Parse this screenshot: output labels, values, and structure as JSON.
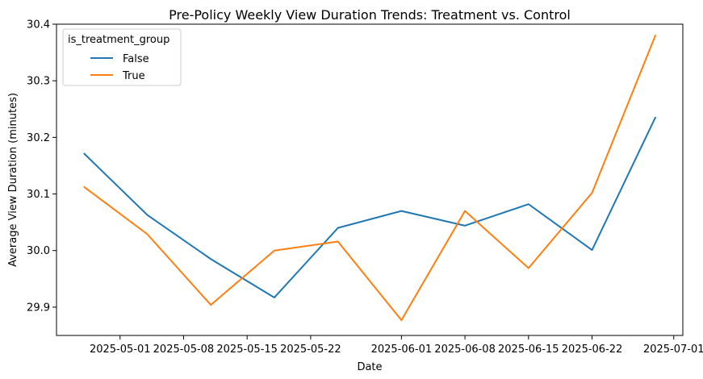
{
  "chart_data": {
    "type": "line",
    "title": "Pre-Policy Weekly View Duration Trends: Treatment vs. Control",
    "xlabel": "Date",
    "ylabel": "Average View Duration (minutes)",
    "x": [
      "2025-04-27",
      "2025-05-04",
      "2025-05-11",
      "2025-05-18",
      "2025-05-25",
      "2025-06-01",
      "2025-06-08",
      "2025-06-15",
      "2025-06-22",
      "2025-06-29"
    ],
    "xlim": [
      "2025-04-24",
      "2025-07-02"
    ],
    "xticks": [
      "2025-05-01",
      "2025-05-08",
      "2025-05-15",
      "2025-05-22",
      "2025-06-01",
      "2025-06-08",
      "2025-06-15",
      "2025-06-22",
      "2025-07-01"
    ],
    "ylim": [
      29.85,
      30.4
    ],
    "yticks": [
      29.9,
      30.0,
      30.1,
      30.2,
      30.3,
      30.4
    ],
    "grid": false,
    "legend": {
      "title": "is_treatment_group",
      "placement": "top-left"
    },
    "series": [
      {
        "name": "False",
        "color": "#1f77b4",
        "values": [
          30.172,
          30.063,
          29.985,
          29.917,
          30.04,
          30.07,
          30.044,
          30.082,
          30.001,
          30.236
        ]
      },
      {
        "name": "True",
        "color": "#ff7f0e",
        "values": [
          30.113,
          30.029,
          29.904,
          30.0,
          30.016,
          29.877,
          30.07,
          29.969,
          30.102,
          30.381
        ]
      }
    ]
  }
}
